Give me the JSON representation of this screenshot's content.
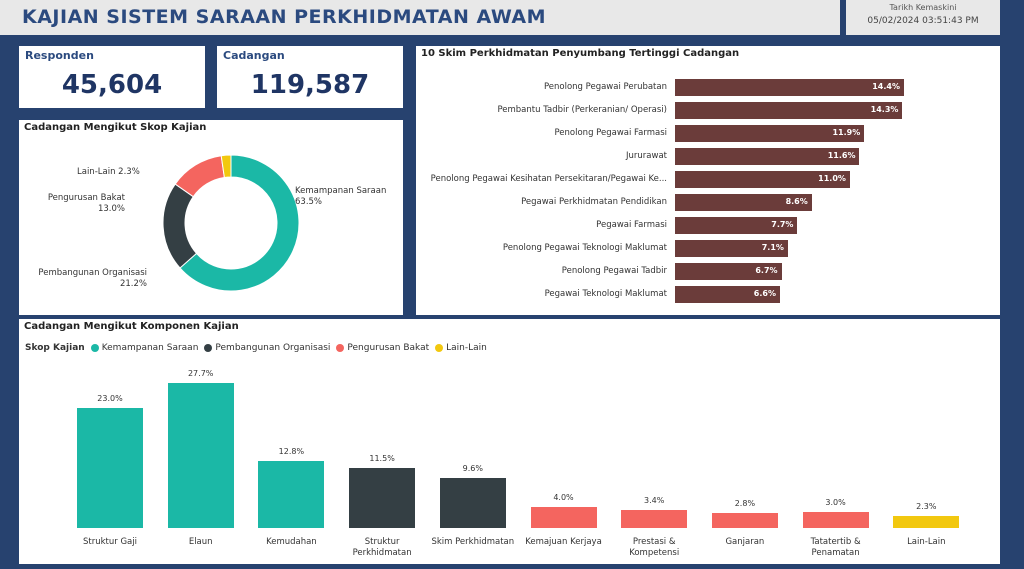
{
  "header": {
    "title": "KAJIAN SISTEM SARAAN PERKHIDMATAN AWAM",
    "updated_label": "Tarikh Kemaskini",
    "updated_value": "05/02/2024 03:51:43 PM"
  },
  "kpi": {
    "responden_label": "Responden",
    "responden_value": "45,604",
    "cadangan_label": "Cadangan",
    "cadangan_value": "119,587"
  },
  "donut": {
    "title": "Cadangan Mengikut Skop Kajian",
    "slices": [
      {
        "label": "Kemampanan Saraan",
        "pct": "63.5%",
        "value": 63.5,
        "color": "#1bb8a6"
      },
      {
        "label": "Pembangunan Organisasi",
        "pct": "21.2%",
        "value": 21.2,
        "color": "#343f44"
      },
      {
        "label": "Pengurusan Bakat",
        "pct": "13.0%",
        "value": 13.0,
        "color": "#f4655f"
      },
      {
        "label": "Lain-Lain",
        "pct": "2.3%",
        "value": 2.3,
        "color": "#f2c80f"
      }
    ]
  },
  "top10": {
    "title": "10 Skim Perkhidmatan Penyumbang Tertinggi Cadangan",
    "bar_color": "#6b3c3a",
    "max": 14.4,
    "items": [
      {
        "label": "Penolong Pegawai Perubatan",
        "pct": "14.4%",
        "value": 14.4
      },
      {
        "label": "Pembantu Tadbir (Perkeranian/ Operasi)",
        "pct": "14.3%",
        "value": 14.3
      },
      {
        "label": "Penolong Pegawai Farmasi",
        "pct": "11.9%",
        "value": 11.9
      },
      {
        "label": "Jururawat",
        "pct": "11.6%",
        "value": 11.6
      },
      {
        "label": "Penolong Pegawai Kesihatan Persekitaran/Pegawai Ke...",
        "pct": "11.0%",
        "value": 11.0
      },
      {
        "label": "Pegawai Perkhidmatan Pendidikan",
        "pct": "8.6%",
        "value": 8.6
      },
      {
        "label": "Pegawai Farmasi",
        "pct": "7.7%",
        "value": 7.7
      },
      {
        "label": "Penolong Pegawai Teknologi Maklumat",
        "pct": "7.1%",
        "value": 7.1
      },
      {
        "label": "Penolong Pegawai Tadbir",
        "pct": "6.7%",
        "value": 6.7
      },
      {
        "label": "Pegawai Teknologi Maklumat",
        "pct": "6.6%",
        "value": 6.6
      }
    ]
  },
  "komponen": {
    "title": "Cadangan Mengikut Komponen Kajian",
    "legend_title": "Skop Kajian",
    "legend": [
      {
        "label": "Kemampanan Saraan",
        "color": "#1bb8a6"
      },
      {
        "label": "Pembangunan Organisasi",
        "color": "#343f44"
      },
      {
        "label": "Pengurusan Bakat",
        "color": "#f4655f"
      },
      {
        "label": "Lain-Lain",
        "color": "#f2c80f"
      }
    ]
  },
  "chart_data": [
    {
      "type": "pie",
      "title": "Cadangan Mengikut Skop Kajian",
      "categories": [
        "Kemampanan Saraan",
        "Pembangunan Organisasi",
        "Pengurusan Bakat",
        "Lain-Lain"
      ],
      "values": [
        63.5,
        21.2,
        13.0,
        2.3
      ]
    },
    {
      "type": "bar",
      "title": "10 Skim Perkhidmatan Penyumbang Tertinggi Cadangan",
      "orientation": "horizontal",
      "categories": [
        "Penolong Pegawai Perubatan",
        "Pembantu Tadbir (Perkeranian/ Operasi)",
        "Penolong Pegawai Farmasi",
        "Jururawat",
        "Penolong Pegawai Kesihatan Persekitaran/Pegawai Ke...",
        "Pegawai Perkhidmatan Pendidikan",
        "Pegawai Farmasi",
        "Penolong Pegawai Teknologi Maklumat",
        "Penolong Pegawai Tadbir",
        "Pegawai Teknologi Maklumat"
      ],
      "values": [
        14.4,
        14.3,
        11.9,
        11.6,
        11.0,
        8.6,
        7.7,
        7.1,
        6.7,
        6.6
      ]
    },
    {
      "type": "bar",
      "title": "Cadangan Mengikut Komponen Kajian",
      "legend_title": "Skop Kajian",
      "categories": [
        "Struktur Gaji",
        "Elaun",
        "Kemudahan",
        "Struktur Perkhidmatan",
        "Skim Perkhidmatan",
        "Kemajuan Kerjaya",
        "Prestasi & Kompetensi",
        "Ganjaran",
        "Tatatertib & Penamatan",
        "Lain-Lain"
      ],
      "values": [
        23.0,
        27.7,
        12.8,
        11.5,
        9.6,
        4.0,
        3.4,
        2.8,
        3.0,
        2.3
      ],
      "labels": [
        "23.0%",
        "27.7%",
        "12.8%",
        "11.5%",
        "9.6%",
        "4.0%",
        "3.4%",
        "2.8%",
        "3.0%",
        "2.3%"
      ],
      "group": [
        "Kemampanan Saraan",
        "Kemampanan Saraan",
        "Kemampanan Saraan",
        "Pembangunan Organisasi",
        "Pembangunan Organisasi",
        "Pengurusan Bakat",
        "Pengurusan Bakat",
        "Pengurusan Bakat",
        "Pengurusan Bakat",
        "Lain-Lain"
      ],
      "colors": [
        "#1bb8a6",
        "#1bb8a6",
        "#1bb8a6",
        "#343f44",
        "#343f44",
        "#f4655f",
        "#f4655f",
        "#f4655f",
        "#f4655f",
        "#f2c80f"
      ]
    }
  ]
}
